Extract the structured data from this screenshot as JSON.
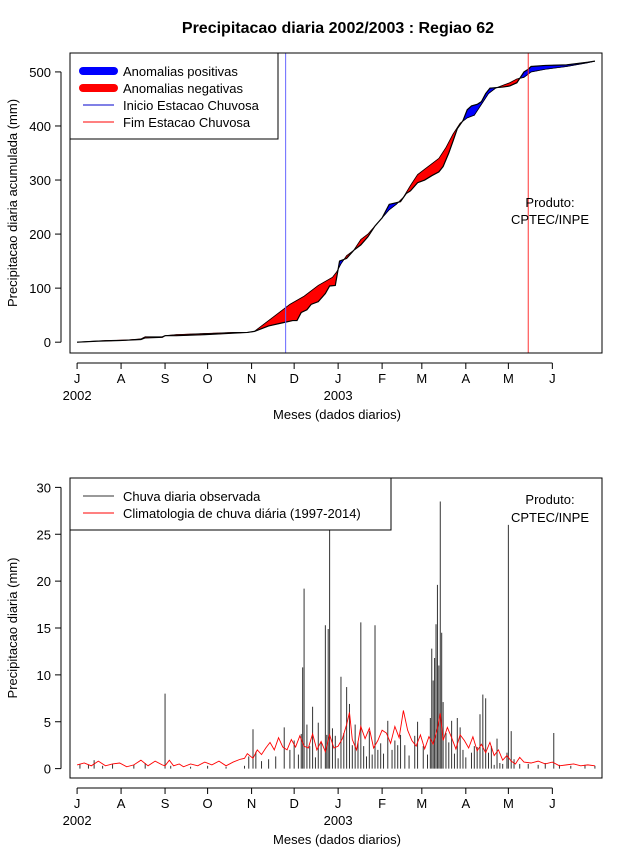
{
  "title": "Precipitacao diaria 2002/2003 : Regiao 62",
  "credit": [
    "Produto:",
    "CPTEC/INPE"
  ],
  "month_ticks": [
    "J",
    "A",
    "S",
    "O",
    "N",
    "D",
    "J",
    "F",
    "M",
    "A",
    "M",
    "J"
  ],
  "year_labels": [
    "2002",
    "2003"
  ],
  "colors": {
    "positive": "#0000ff",
    "negative": "#ff0000",
    "observed": "#333333",
    "climatology": "#ff0000",
    "start_line": "#6666ff",
    "end_line": "#ff3333"
  },
  "chart_data": [
    {
      "type": "area",
      "title": "Precipitacao diaria 2002/2003 : Regiao 62",
      "xlabel": "Meses (dados diarios)",
      "ylabel": "Precipitacao diaria acumulada (mm)",
      "ylim": [
        -20,
        535
      ],
      "yticks": [
        0,
        100,
        200,
        300,
        400,
        500
      ],
      "x_unit": "days since 2002-07-01",
      "xlim": [
        -5,
        370
      ],
      "month_tick_days": [
        0,
        31,
        62,
        92,
        123,
        153,
        184,
        215,
        243,
        274,
        304,
        335
      ],
      "rainy_season_start_day": 147,
      "rainy_season_end_day": 318,
      "legend": [
        "Anomalias positivas",
        "Anomalias negativas",
        "Inicio Estacao Chuvosa",
        "Fim Estacao Chuvosa"
      ],
      "legend_position": "top-left",
      "observed_cumulative": [
        [
          0,
          0
        ],
        [
          15,
          2
        ],
        [
          30,
          3
        ],
        [
          45,
          5
        ],
        [
          48,
          8
        ],
        [
          60,
          9
        ],
        [
          62,
          12
        ],
        [
          70,
          12
        ],
        [
          90,
          14
        ],
        [
          105,
          16
        ],
        [
          120,
          18
        ],
        [
          125,
          20
        ],
        [
          130,
          25
        ],
        [
          135,
          30
        ],
        [
          145,
          36
        ],
        [
          152,
          40
        ],
        [
          155,
          40
        ],
        [
          158,
          55
        ],
        [
          162,
          60
        ],
        [
          165,
          70
        ],
        [
          170,
          75
        ],
        [
          175,
          90
        ],
        [
          178,
          104
        ],
        [
          182,
          105
        ],
        [
          185,
          150
        ],
        [
          190,
          155
        ],
        [
          195,
          170
        ],
        [
          200,
          180
        ],
        [
          205,
          195
        ],
        [
          210,
          215
        ],
        [
          215,
          230
        ],
        [
          220,
          255
        ],
        [
          225,
          258
        ],
        [
          228,
          260
        ],
        [
          232,
          275
        ],
        [
          235,
          280
        ],
        [
          240,
          295
        ],
        [
          245,
          300
        ],
        [
          250,
          308
        ],
        [
          255,
          315
        ],
        [
          258,
          325
        ],
        [
          262,
          350
        ],
        [
          265,
          372
        ],
        [
          268,
          395
        ],
        [
          272,
          410
        ],
        [
          275,
          430
        ],
        [
          278,
          437
        ],
        [
          282,
          440
        ],
        [
          285,
          445
        ],
        [
          288,
          460
        ],
        [
          291,
          470
        ],
        [
          300,
          472
        ],
        [
          305,
          474
        ],
        [
          310,
          480
        ],
        [
          315,
          500
        ],
        [
          318,
          505
        ],
        [
          320,
          510
        ],
        [
          330,
          512
        ],
        [
          345,
          513
        ],
        [
          360,
          518
        ],
        [
          365,
          520
        ]
      ],
      "climatology_cumulative": [
        [
          0,
          0
        ],
        [
          20,
          3
        ],
        [
          35,
          4
        ],
        [
          45,
          6
        ],
        [
          48,
          10
        ],
        [
          60,
          10
        ],
        [
          62,
          12
        ],
        [
          70,
          14
        ],
        [
          90,
          16
        ],
        [
          100,
          17
        ],
        [
          110,
          18
        ],
        [
          120,
          18
        ],
        [
          125,
          20
        ],
        [
          130,
          30
        ],
        [
          140,
          50
        ],
        [
          150,
          70
        ],
        [
          160,
          85
        ],
        [
          170,
          105
        ],
        [
          180,
          120
        ],
        [
          183,
          130
        ],
        [
          186,
          145
        ],
        [
          190,
          160
        ],
        [
          195,
          170
        ],
        [
          200,
          190
        ],
        [
          205,
          200
        ],
        [
          210,
          215
        ],
        [
          215,
          230
        ],
        [
          220,
          245
        ],
        [
          225,
          255
        ],
        [
          230,
          268
        ],
        [
          235,
          290
        ],
        [
          240,
          310
        ],
        [
          245,
          320
        ],
        [
          250,
          330
        ],
        [
          255,
          340
        ],
        [
          260,
          360
        ],
        [
          265,
          385
        ],
        [
          270,
          405
        ],
        [
          275,
          415
        ],
        [
          280,
          420
        ],
        [
          285,
          440
        ],
        [
          290,
          460
        ],
        [
          295,
          470
        ],
        [
          300,
          475
        ],
        [
          305,
          480
        ],
        [
          310,
          487
        ],
        [
          315,
          490
        ],
        [
          320,
          500
        ],
        [
          330,
          505
        ],
        [
          345,
          510
        ],
        [
          360,
          517
        ],
        [
          365,
          520
        ]
      ]
    },
    {
      "type": "bar",
      "xlabel": "Meses (dados diarios)",
      "ylabel": "Precipitacao diaria (mm)",
      "ylim": [
        -1,
        31
      ],
      "yticks": [
        0,
        5,
        10,
        15,
        20,
        25,
        30
      ],
      "x_unit": "days since 2002-07-01",
      "xlim": [
        -5,
        370
      ],
      "month_tick_days": [
        0,
        31,
        62,
        92,
        123,
        153,
        184,
        215,
        243,
        274,
        304,
        335
      ],
      "legend": [
        "Chuva diaria observada",
        "Climatologia de chuva diária (1997-2014)"
      ],
      "legend_position": "top-left",
      "observed_daily": [
        [
          2,
          0.5
        ],
        [
          8,
          0.4
        ],
        [
          12,
          0.9
        ],
        [
          18,
          0.3
        ],
        [
          25,
          0.5
        ],
        [
          40,
          0.4
        ],
        [
          48,
          0.6
        ],
        [
          62,
          8.0
        ],
        [
          66,
          0.3
        ],
        [
          80,
          0.2
        ],
        [
          92,
          0.3
        ],
        [
          105,
          0.2
        ],
        [
          118,
          0.3
        ],
        [
          121,
          1.3
        ],
        [
          124,
          4.2
        ],
        [
          126,
          1.8
        ],
        [
          130,
          0.8
        ],
        [
          135,
          1.0
        ],
        [
          140,
          1.3
        ],
        [
          146,
          4.4
        ],
        [
          150,
          2.0
        ],
        [
          153,
          3.0
        ],
        [
          156,
          1.5
        ],
        [
          158,
          3.7
        ],
        [
          159,
          10.8
        ],
        [
          160,
          19.2
        ],
        [
          162,
          4.7
        ],
        [
          164,
          2.4
        ],
        [
          166,
          6.6
        ],
        [
          168,
          1.2
        ],
        [
          170,
          4.9
        ],
        [
          172,
          2.8
        ],
        [
          175,
          15.3
        ],
        [
          176,
          3.6
        ],
        [
          177,
          14.9
        ],
        [
          178,
          26.2
        ],
        [
          180,
          4.3
        ],
        [
          182,
          3.5
        ],
        [
          184,
          1.1
        ],
        [
          186,
          9.8
        ],
        [
          188,
          3.8
        ],
        [
          190,
          8.7
        ],
        [
          192,
          6.9
        ],
        [
          194,
          2.5
        ],
        [
          196,
          4.7
        ],
        [
          198,
          2.9
        ],
        [
          200,
          15.6
        ],
        [
          202,
          2.4
        ],
        [
          204,
          1.3
        ],
        [
          206,
          4.0
        ],
        [
          208,
          1.5
        ],
        [
          210,
          15.3
        ],
        [
          212,
          2.0
        ],
        [
          214,
          2.7
        ],
        [
          216,
          1.6
        ],
        [
          219,
          5.1
        ],
        [
          222,
          2.0
        ],
        [
          224,
          3.0
        ],
        [
          226,
          2.5
        ],
        [
          228,
          3.6
        ],
        [
          231,
          2.5
        ],
        [
          234,
          1.4
        ],
        [
          238,
          3.5
        ],
        [
          240,
          5.0
        ],
        [
          244,
          2.4
        ],
        [
          247,
          1.5
        ],
        [
          249,
          5.4
        ],
        [
          250,
          12.8
        ],
        [
          251,
          9.4
        ],
        [
          252,
          11.8
        ],
        [
          253,
          15.4
        ],
        [
          254,
          19.6
        ],
        [
          255,
          11.0
        ],
        [
          256,
          28.5
        ],
        [
          257,
          14.5
        ],
        [
          258,
          7.1
        ],
        [
          260,
          3.8
        ],
        [
          262,
          2.8
        ],
        [
          264,
          5.1
        ],
        [
          266,
          1.6
        ],
        [
          268,
          5.4
        ],
        [
          270,
          4.4
        ],
        [
          272,
          2.0
        ],
        [
          274,
          1.2
        ],
        [
          278,
          1.7
        ],
        [
          280,
          2.4
        ],
        [
          282,
          2.3
        ],
        [
          284,
          5.8
        ],
        [
          286,
          7.9
        ],
        [
          288,
          7.5
        ],
        [
          290,
          1.7
        ],
        [
          292,
          2.4
        ],
        [
          294,
          0.4
        ],
        [
          296,
          3.2
        ],
        [
          298,
          0.6
        ],
        [
          300,
          0.5
        ],
        [
          303,
          1.7
        ],
        [
          304,
          26.0
        ],
        [
          306,
          4.0
        ],
        [
          308,
          1.0
        ],
        [
          312,
          0.5
        ],
        [
          318,
          0.5
        ],
        [
          325,
          0.4
        ],
        [
          330,
          0.6
        ],
        [
          336,
          3.8
        ],
        [
          340,
          0.4
        ],
        [
          348,
          0.3
        ],
        [
          358,
          0.4
        ],
        [
          365,
          0.3
        ]
      ],
      "climatology_daily": [
        [
          0,
          0.4
        ],
        [
          5,
          0.6
        ],
        [
          10,
          0.3
        ],
        [
          15,
          0.8
        ],
        [
          20,
          0.3
        ],
        [
          25,
          0.5
        ],
        [
          30,
          0.6
        ],
        [
          35,
          0.2
        ],
        [
          40,
          0.4
        ],
        [
          45,
          0.9
        ],
        [
          50,
          0.3
        ],
        [
          55,
          0.8
        ],
        [
          60,
          0.4
        ],
        [
          62,
          0.3
        ],
        [
          65,
          0.9
        ],
        [
          68,
          0.3
        ],
        [
          72,
          0.5
        ],
        [
          75,
          0.2
        ],
        [
          80,
          0.5
        ],
        [
          85,
          0.3
        ],
        [
          90,
          0.7
        ],
        [
          95,
          0.4
        ],
        [
          100,
          0.8
        ],
        [
          105,
          0.3
        ],
        [
          110,
          0.7
        ],
        [
          115,
          1.0
        ],
        [
          118,
          1.1
        ],
        [
          120,
          1.6
        ],
        [
          124,
          1.1
        ],
        [
          127,
          2.0
        ],
        [
          130,
          1.5
        ],
        [
          133,
          2.2
        ],
        [
          136,
          2.8
        ],
        [
          139,
          2.0
        ],
        [
          142,
          3.3
        ],
        [
          145,
          2.3
        ],
        [
          148,
          2.0
        ],
        [
          151,
          3.1
        ],
        [
          154,
          2.3
        ],
        [
          157,
          3.5
        ],
        [
          160,
          2.4
        ],
        [
          163,
          2.2
        ],
        [
          166,
          3.7
        ],
        [
          169,
          2.0
        ],
        [
          172,
          2.9
        ],
        [
          175,
          1.8
        ],
        [
          178,
          3.6
        ],
        [
          181,
          2.2
        ],
        [
          184,
          2.4
        ],
        [
          187,
          3.2
        ],
        [
          190,
          4.7
        ],
        [
          192,
          6.0
        ],
        [
          194,
          3.1
        ],
        [
          197,
          2.0
        ],
        [
          200,
          4.5
        ],
        [
          203,
          3.2
        ],
        [
          206,
          4.3
        ],
        [
          209,
          2.2
        ],
        [
          212,
          3.0
        ],
        [
          215,
          4.1
        ],
        [
          218,
          3.8
        ],
        [
          221,
          2.7
        ],
        [
          224,
          4.5
        ],
        [
          227,
          3.3
        ],
        [
          230,
          6.2
        ],
        [
          233,
          4.1
        ],
        [
          236,
          3.0
        ],
        [
          239,
          2.4
        ],
        [
          242,
          3.6
        ],
        [
          245,
          2.1
        ],
        [
          248,
          3.4
        ],
        [
          251,
          2.6
        ],
        [
          254,
          4.3
        ],
        [
          256,
          5.9
        ],
        [
          258,
          3.0
        ],
        [
          261,
          4.4
        ],
        [
          264,
          3.3
        ],
        [
          267,
          2.1
        ],
        [
          270,
          3.6
        ],
        [
          273,
          3.0
        ],
        [
          276,
          2.2
        ],
        [
          279,
          3.4
        ],
        [
          282,
          1.9
        ],
        [
          285,
          2.6
        ],
        [
          288,
          1.7
        ],
        [
          291,
          2.8
        ],
        [
          294,
          1.4
        ],
        [
          297,
          2.0
        ],
        [
          300,
          0.9
        ],
        [
          303,
          1.4
        ],
        [
          306,
          0.8
        ],
        [
          309,
          0.5
        ],
        [
          312,
          1.2
        ],
        [
          315,
          0.7
        ],
        [
          320,
          0.6
        ],
        [
          325,
          0.8
        ],
        [
          330,
          0.5
        ],
        [
          335,
          0.7
        ],
        [
          340,
          0.3
        ],
        [
          345,
          0.4
        ],
        [
          350,
          0.5
        ],
        [
          355,
          0.3
        ],
        [
          360,
          0.4
        ],
        [
          365,
          0.3
        ]
      ]
    }
  ]
}
